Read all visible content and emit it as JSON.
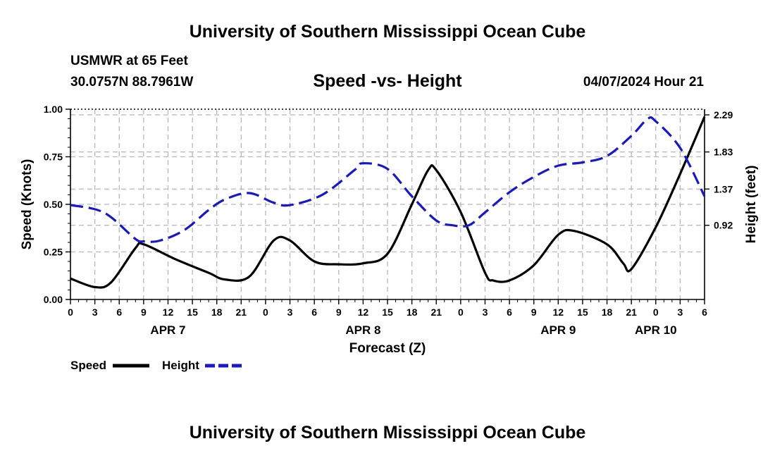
{
  "header": {
    "title": "University of Southern Mississippi Ocean Cube",
    "station": "USMWR at 65 Feet",
    "coords": "30.0757N  88.7961W",
    "subtitle": "Speed -vs- Height",
    "datetime": "04/07/2024 Hour 21"
  },
  "footer": {
    "title": "University of Southern Mississippi Ocean Cube"
  },
  "chart_data": {
    "type": "line",
    "title": "Speed -vs- Height",
    "xlabel": "Forecast (Z)",
    "ylabel_left": "Speed (Knots)",
    "ylabel_right": "Height (feet)",
    "x_hours_range": [
      0,
      78
    ],
    "x_tick_step_hours": 3,
    "x_tick_labels": [
      "0",
      "3",
      "6",
      "9",
      "12",
      "15",
      "18",
      "21",
      "0",
      "3",
      "6",
      "9",
      "12",
      "15",
      "18",
      "21",
      "0",
      "3",
      "6",
      "9",
      "12",
      "15",
      "18",
      "21",
      "0",
      "3",
      "6"
    ],
    "day_labels": [
      {
        "label": "APR 7",
        "hour": 12
      },
      {
        "label": "APR 8",
        "hour": 36
      },
      {
        "label": "APR 9",
        "hour": 60
      },
      {
        "label": "APR 10",
        "hour": 72
      }
    ],
    "ylim_left": [
      0,
      1
    ],
    "yticks_left": [
      "0.00",
      "0.25",
      "0.50",
      "0.75",
      "1.00"
    ],
    "ylim_right": [
      0.0,
      2.36
    ],
    "yticks_right": [
      {
        "value": 0.92,
        "label": "0.92"
      },
      {
        "value": 1.37,
        "label": "1.37"
      },
      {
        "value": 1.83,
        "label": "1.83"
      },
      {
        "value": 2.29,
        "label": "2.29"
      }
    ],
    "grid": true,
    "legend_position": "bottom-left",
    "series": [
      {
        "name": "Speed",
        "axis": "left",
        "color": "#000000",
        "dash": "solid",
        "x": [
          0,
          3,
          5,
          8,
          9,
          13,
          17,
          19,
          22,
          25,
          27,
          30,
          33,
          36,
          39,
          42,
          44,
          45,
          48,
          51,
          52,
          54,
          57,
          60,
          62,
          66,
          68,
          69,
          72,
          75,
          78
        ],
        "y": [
          0.11,
          0.065,
          0.09,
          0.27,
          0.29,
          0.21,
          0.14,
          0.105,
          0.12,
          0.31,
          0.31,
          0.2,
          0.185,
          0.19,
          0.24,
          0.5,
          0.68,
          0.68,
          0.46,
          0.14,
          0.1,
          0.1,
          0.18,
          0.34,
          0.36,
          0.29,
          0.19,
          0.16,
          0.38,
          0.66,
          0.96
        ]
      },
      {
        "name": "Height",
        "axis": "right",
        "color": "#1818c8",
        "dash": "dashed",
        "x": [
          0,
          3,
          5,
          8,
          9,
          11,
          14,
          17,
          19,
          22,
          25,
          27,
          31,
          35,
          36,
          39,
          42,
          45,
          47,
          49,
          51,
          54,
          57,
          60,
          63,
          66,
          69,
          71,
          72,
          75,
          78
        ],
        "y": [
          1.17,
          1.12,
          1.02,
          0.75,
          0.72,
          0.73,
          0.86,
          1.11,
          1.24,
          1.32,
          1.2,
          1.17,
          1.3,
          1.61,
          1.69,
          1.62,
          1.28,
          0.98,
          0.92,
          0.92,
          1.08,
          1.33,
          1.52,
          1.66,
          1.7,
          1.78,
          2.03,
          2.24,
          2.21,
          1.88,
          1.28
        ]
      }
    ]
  }
}
